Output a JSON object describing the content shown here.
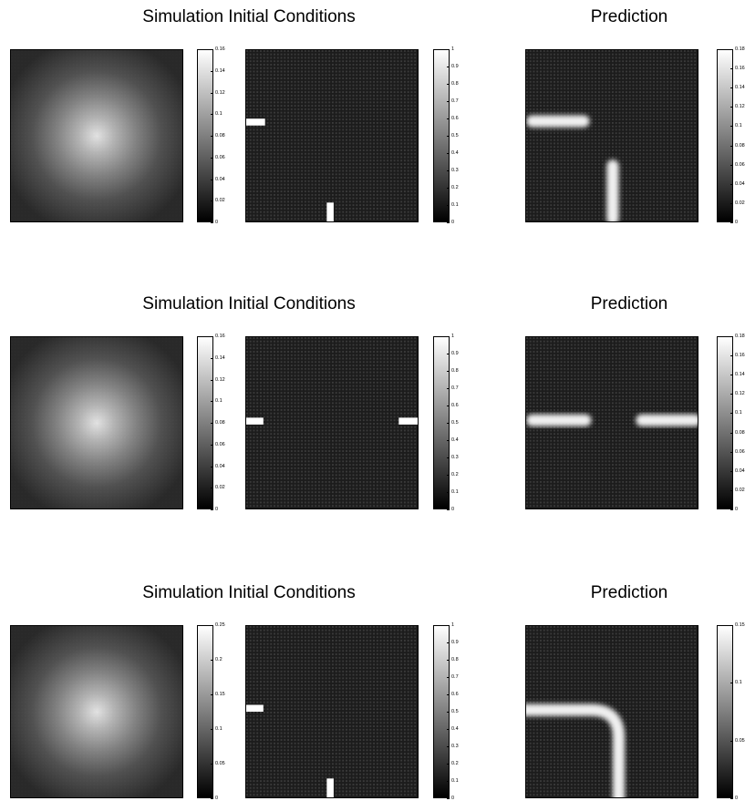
{
  "chart_data": [
    {
      "type": "heatmap",
      "rows": [
        {
          "left_title": "Simulation Initial Conditions",
          "right_title": "Prediction",
          "panels": [
            {
              "name": "source-field",
              "pattern": "gaussian",
              "colorbar": [
                "0",
                "0.02",
                "0.04",
                "0.06",
                "0.08",
                "0.1",
                "0.12",
                "0.14",
                "0.16"
              ],
              "range": [
                0,
                0.16
              ]
            },
            {
              "name": "boundary-mask",
              "pattern": "mask",
              "colorbar": [
                "0",
                "0.1",
                "0.2",
                "0.3",
                "0.4",
                "0.5",
                "0.6",
                "0.7",
                "0.8",
                "0.9",
                "1"
              ],
              "range": [
                0,
                1
              ]
            },
            {
              "name": "prediction-field",
              "pattern": "prediction",
              "colorbar": [
                "0",
                "0.02",
                "0.04",
                "0.06",
                "0.08",
                "0.1",
                "0.12",
                "0.14",
                "0.16",
                "0.18"
              ],
              "range": [
                0,
                0.18
              ]
            }
          ]
        },
        {
          "left_title": "Simulation Initial Conditions",
          "right_title": "Prediction",
          "panels": [
            {
              "name": "source-field",
              "pattern": "gaussian",
              "colorbar": [
                "0",
                "0.02",
                "0.04",
                "0.06",
                "0.08",
                "0.1",
                "0.12",
                "0.14",
                "0.16"
              ],
              "range": [
                0,
                0.16
              ]
            },
            {
              "name": "boundary-mask",
              "pattern": "mask",
              "colorbar": [
                "0",
                "0.1",
                "0.2",
                "0.3",
                "0.4",
                "0.5",
                "0.6",
                "0.7",
                "0.8",
                "0.9",
                "1"
              ],
              "range": [
                0,
                1
              ]
            },
            {
              "name": "prediction-field",
              "pattern": "prediction",
              "colorbar": [
                "0",
                "0.02",
                "0.04",
                "0.06",
                "0.08",
                "0.1",
                "0.12",
                "0.14",
                "0.16",
                "0.18"
              ],
              "range": [
                0,
                0.18
              ]
            }
          ]
        },
        {
          "left_title": "Simulation Initial Conditions",
          "right_title": "Prediction",
          "panels": [
            {
              "name": "source-field",
              "pattern": "gaussian",
              "colorbar": [
                "0",
                "0.05",
                "0.1",
                "0.15",
                "0.2",
                "0.25"
              ],
              "range": [
                0,
                0.25
              ]
            },
            {
              "name": "boundary-mask",
              "pattern": "mask",
              "colorbar": [
                "0",
                "0.1",
                "0.2",
                "0.3",
                "0.4",
                "0.5",
                "0.6",
                "0.7",
                "0.8",
                "0.9",
                "1"
              ],
              "range": [
                0,
                1
              ]
            },
            {
              "name": "prediction-field",
              "pattern": "prediction",
              "colorbar": [
                "0",
                "0.05",
                "0.1",
                "0.15"
              ],
              "range": [
                0,
                0.15
              ]
            }
          ]
        }
      ]
    }
  ]
}
